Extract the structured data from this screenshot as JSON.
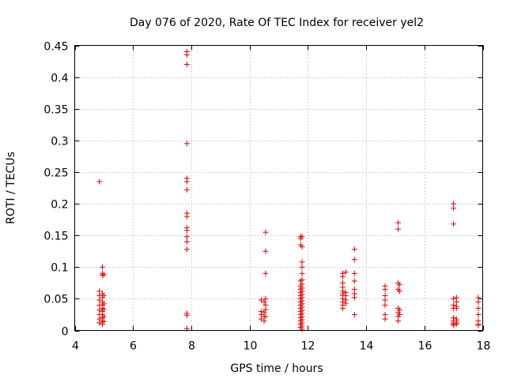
{
  "chart_data": {
    "type": "scatter",
    "title": "Day 076 of 2020, Rate Of TEC Index for receiver yel2",
    "xlabel": "GPS time / hours",
    "ylabel": "ROTI / TECUs",
    "xlim": [
      4,
      18
    ],
    "ylim": [
      0,
      0.45
    ],
    "xticks": [
      4,
      6,
      8,
      10,
      12,
      14,
      16,
      18
    ],
    "xtick_labels": [
      "4",
      "6",
      "8",
      "10",
      "12",
      "14",
      "16",
      "18"
    ],
    "yticks": [
      0,
      0.05,
      0.1,
      0.15,
      0.2,
      0.25,
      0.3,
      0.35,
      0.4,
      0.45
    ],
    "ytick_labels": [
      "0",
      "0.05",
      "0.1",
      "0.15",
      "0.2",
      "0.25",
      "0.3",
      "0.35",
      "0.4",
      "0.45"
    ],
    "grid": true,
    "marker": "+",
    "marker_color": "#e00000",
    "series": [
      {
        "name": "ROTI",
        "points": [
          [
            4.85,
            0.235
          ],
          [
            4.85,
            0.062
          ],
          [
            4.85,
            0.055
          ],
          [
            4.85,
            0.048
          ],
          [
            4.85,
            0.04
          ],
          [
            4.85,
            0.032
          ],
          [
            4.85,
            0.025
          ],
          [
            4.85,
            0.018
          ],
          [
            4.85,
            0.012
          ],
          [
            4.95,
            0.1
          ],
          [
            4.95,
            0.09
          ],
          [
            4.95,
            0.087
          ],
          [
            4.95,
            0.058
          ],
          [
            4.95,
            0.052
          ],
          [
            4.95,
            0.045
          ],
          [
            4.95,
            0.04
          ],
          [
            4.95,
            0.035
          ],
          [
            4.95,
            0.03
          ],
          [
            4.95,
            0.025
          ],
          [
            4.95,
            0.02
          ],
          [
            4.95,
            0.015
          ],
          [
            4.95,
            0.01
          ],
          [
            5.0,
            0.088
          ],
          [
            5.0,
            0.055
          ],
          [
            5.0,
            0.042
          ],
          [
            5.0,
            0.033
          ],
          [
            5.0,
            0.022
          ],
          [
            5.0,
            0.014
          ],
          [
            7.85,
            0.44
          ],
          [
            7.85,
            0.435
          ],
          [
            7.85,
            0.42
          ],
          [
            7.85,
            0.295
          ],
          [
            7.85,
            0.24
          ],
          [
            7.85,
            0.235
          ],
          [
            7.85,
            0.222
          ],
          [
            7.85,
            0.185
          ],
          [
            7.85,
            0.18
          ],
          [
            7.85,
            0.162
          ],
          [
            7.85,
            0.158
          ],
          [
            7.85,
            0.148
          ],
          [
            7.85,
            0.14
          ],
          [
            7.85,
            0.128
          ],
          [
            7.85,
            0.027
          ],
          [
            7.85,
            0.024
          ],
          [
            7.85,
            0.003
          ],
          [
            10.4,
            0.048
          ],
          [
            10.4,
            0.03
          ],
          [
            10.4,
            0.025
          ],
          [
            10.4,
            0.018
          ],
          [
            10.5,
            0.045
          ],
          [
            10.5,
            0.028
          ],
          [
            10.5,
            0.022
          ],
          [
            10.5,
            0.015
          ],
          [
            10.55,
            0.155
          ],
          [
            10.55,
            0.125
          ],
          [
            10.55,
            0.09
          ],
          [
            10.55,
            0.05
          ],
          [
            10.55,
            0.04
          ],
          [
            10.55,
            0.033
          ],
          [
            10.55,
            0.022
          ],
          [
            11.75,
            0.148
          ],
          [
            11.75,
            0.145
          ],
          [
            11.75,
            0.135
          ],
          [
            11.75,
            0.078
          ],
          [
            11.75,
            0.07
          ],
          [
            11.75,
            0.065
          ],
          [
            11.75,
            0.06
          ],
          [
            11.75,
            0.055
          ],
          [
            11.75,
            0.05
          ],
          [
            11.75,
            0.045
          ],
          [
            11.75,
            0.04
          ],
          [
            11.75,
            0.035
          ],
          [
            11.75,
            0.03
          ],
          [
            11.75,
            0.025
          ],
          [
            11.75,
            0.02
          ],
          [
            11.75,
            0.015
          ],
          [
            11.75,
            0.01
          ],
          [
            11.75,
            0.005
          ],
          [
            11.8,
            0.148
          ],
          [
            11.8,
            0.132
          ],
          [
            11.8,
            0.108
          ],
          [
            11.8,
            0.1
          ],
          [
            11.8,
            0.09
          ],
          [
            11.8,
            0.08
          ],
          [
            11.8,
            0.073
          ],
          [
            11.8,
            0.067
          ],
          [
            11.8,
            0.062
          ],
          [
            11.8,
            0.057
          ],
          [
            11.8,
            0.052
          ],
          [
            11.8,
            0.047
          ],
          [
            11.8,
            0.042
          ],
          [
            11.8,
            0.037
          ],
          [
            11.8,
            0.032
          ],
          [
            11.8,
            0.027
          ],
          [
            11.8,
            0.022
          ],
          [
            11.8,
            0.017
          ],
          [
            11.8,
            0.012
          ],
          [
            11.8,
            0.007
          ],
          [
            11.8,
            0.002
          ],
          [
            13.2,
            0.09
          ],
          [
            13.2,
            0.085
          ],
          [
            13.2,
            0.075
          ],
          [
            13.2,
            0.068
          ],
          [
            13.2,
            0.062
          ],
          [
            13.2,
            0.058
          ],
          [
            13.2,
            0.055
          ],
          [
            13.2,
            0.05
          ],
          [
            13.2,
            0.045
          ],
          [
            13.2,
            0.04
          ],
          [
            13.2,
            0.035
          ],
          [
            13.3,
            0.092
          ],
          [
            13.3,
            0.06
          ],
          [
            13.3,
            0.055
          ],
          [
            13.3,
            0.048
          ],
          [
            13.3,
            0.043
          ],
          [
            13.6,
            0.128
          ],
          [
            13.6,
            0.112
          ],
          [
            13.6,
            0.09
          ],
          [
            13.6,
            0.078
          ],
          [
            13.6,
            0.065
          ],
          [
            13.6,
            0.058
          ],
          [
            13.6,
            0.052
          ],
          [
            13.6,
            0.025
          ],
          [
            14.65,
            0.07
          ],
          [
            14.65,
            0.065
          ],
          [
            14.65,
            0.055
          ],
          [
            14.65,
            0.048
          ],
          [
            14.65,
            0.04
          ],
          [
            14.65,
            0.025
          ],
          [
            14.65,
            0.018
          ],
          [
            15.1,
            0.17
          ],
          [
            15.1,
            0.16
          ],
          [
            15.1,
            0.075
          ],
          [
            15.1,
            0.065
          ],
          [
            15.1,
            0.035
          ],
          [
            15.1,
            0.028
          ],
          [
            15.1,
            0.022
          ],
          [
            15.1,
            0.015
          ],
          [
            15.15,
            0.072
          ],
          [
            15.15,
            0.062
          ],
          [
            15.15,
            0.032
          ],
          [
            15.15,
            0.025
          ],
          [
            17.0,
            0.2
          ],
          [
            17.0,
            0.193
          ],
          [
            17.0,
            0.168
          ],
          [
            17.0,
            0.05
          ],
          [
            17.0,
            0.04
          ],
          [
            17.0,
            0.035
          ],
          [
            17.0,
            0.02
          ],
          [
            17.0,
            0.015
          ],
          [
            17.0,
            0.012
          ],
          [
            17.0,
            0.01
          ],
          [
            17.0,
            0.008
          ],
          [
            17.1,
            0.052
          ],
          [
            17.1,
            0.045
          ],
          [
            17.1,
            0.038
          ],
          [
            17.1,
            0.035
          ],
          [
            17.1,
            0.018
          ],
          [
            17.1,
            0.015
          ],
          [
            17.1,
            0.012
          ],
          [
            17.1,
            0.01
          ],
          [
            17.85,
            0.052
          ],
          [
            17.85,
            0.045
          ],
          [
            17.85,
            0.035
          ],
          [
            17.85,
            0.025
          ],
          [
            17.85,
            0.015
          ],
          [
            17.85,
            0.01
          ],
          [
            17.85,
            0.008
          ]
        ]
      }
    ]
  }
}
